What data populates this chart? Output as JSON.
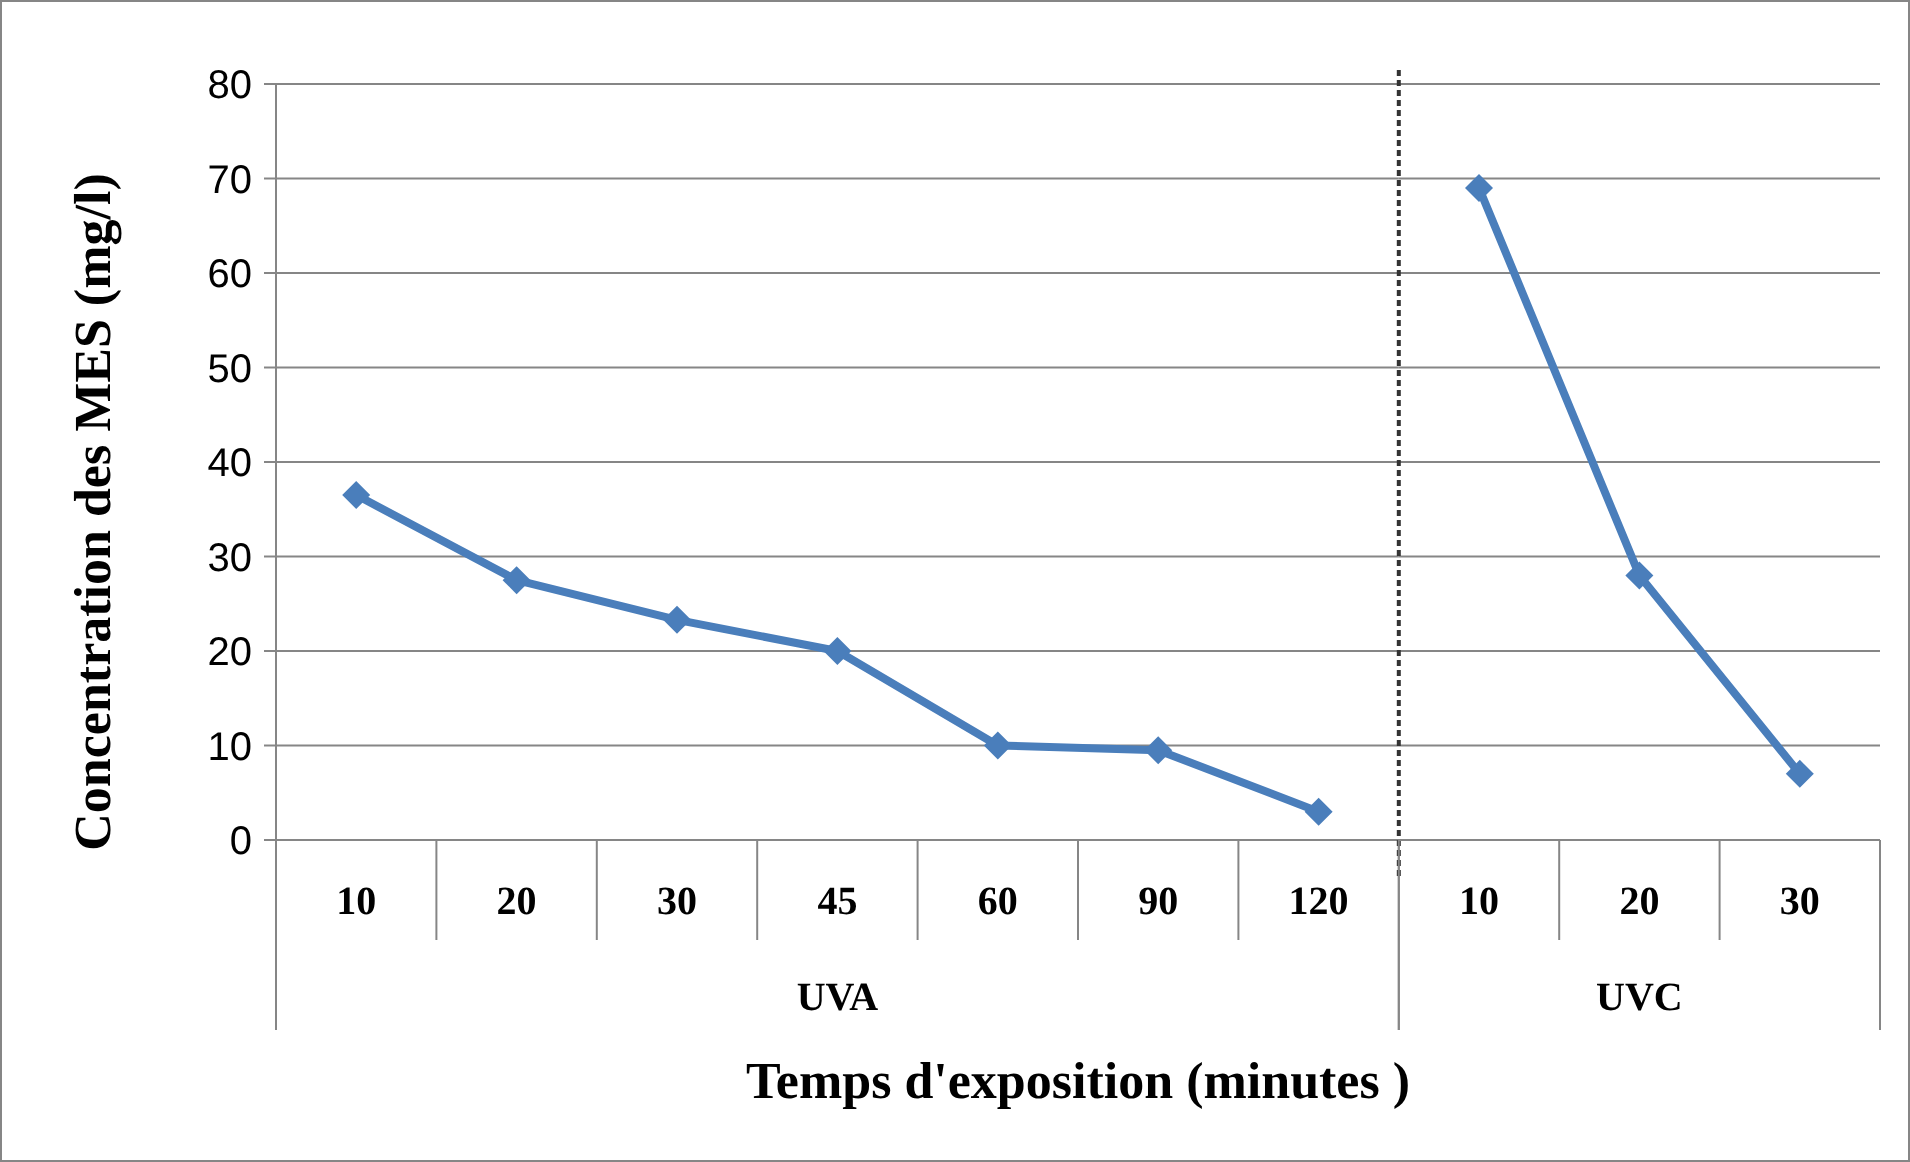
{
  "chart_data": [
    {
      "type": "line",
      "categories": [
        "10",
        "20",
        "30",
        "45",
        "60",
        "90",
        "120"
      ],
      "series": [
        {
          "color": "#4a7ebb",
          "values": [
            36.5,
            27.5,
            23.3,
            20,
            10,
            9.5,
            3
          ]
        }
      ],
      "ylim": [
        0,
        80
      ],
      "yticks": [
        0,
        10,
        20,
        30,
        40,
        50,
        60,
        70,
        80
      ],
      "grid": "y",
      "marker": "diamond",
      "ylabel": "Concentration des MES (mg/l)",
      "xlabel": "UVA",
      "annotations": [
        "Temps d'exposition (minutes )"
      ]
    },
    {
      "type": "line",
      "categories": [
        "10",
        "20",
        "30"
      ],
      "series": [
        {
          "color": "#4a7ebb",
          "values": [
            69,
            28,
            7
          ]
        }
      ],
      "ylim": [
        0,
        80
      ],
      "yticks": [
        0,
        10,
        20,
        30,
        40,
        50,
        60,
        70,
        80
      ],
      "grid": "y",
      "marker": "diamond",
      "tick_labels": "x",
      "xlabel": "UVC"
    }
  ]
}
